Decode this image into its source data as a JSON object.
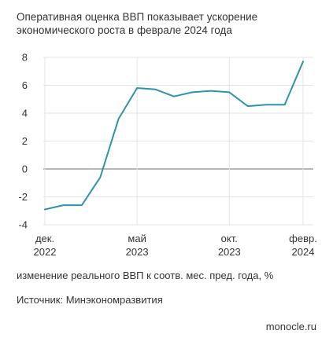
{
  "chart_data": {
    "type": "line",
    "title": "Оперативная оценка ВВП показывает ускорение экономического роста в феврале 2024 года",
    "ylabel": "изменение реального ВВП к соотв. мес. пред. года, %",
    "source": "Источник: Минэкономразвития",
    "brand": "monocle.ru",
    "ylim": [
      -4,
      8
    ],
    "y_ticks": [
      8,
      6,
      4,
      2,
      0,
      -2,
      -4
    ],
    "x_ticks": [
      {
        "index": 0,
        "line1": "дек.",
        "line2": "2022"
      },
      {
        "index": 5,
        "line1": "май",
        "line2": "2023"
      },
      {
        "index": 10,
        "line1": "окт.",
        "line2": "2023"
      },
      {
        "index": 14,
        "line1": "февр.",
        "line2": "2024"
      }
    ],
    "series": [
      {
        "color": "#2e93ad",
        "values": [
          -2.9,
          -2.6,
          -2.6,
          -0.6,
          3.6,
          5.8,
          5.7,
          5.2,
          5.5,
          5.6,
          5.5,
          4.5,
          4.6,
          4.6,
          7.7
        ]
      }
    ],
    "grid": true
  }
}
